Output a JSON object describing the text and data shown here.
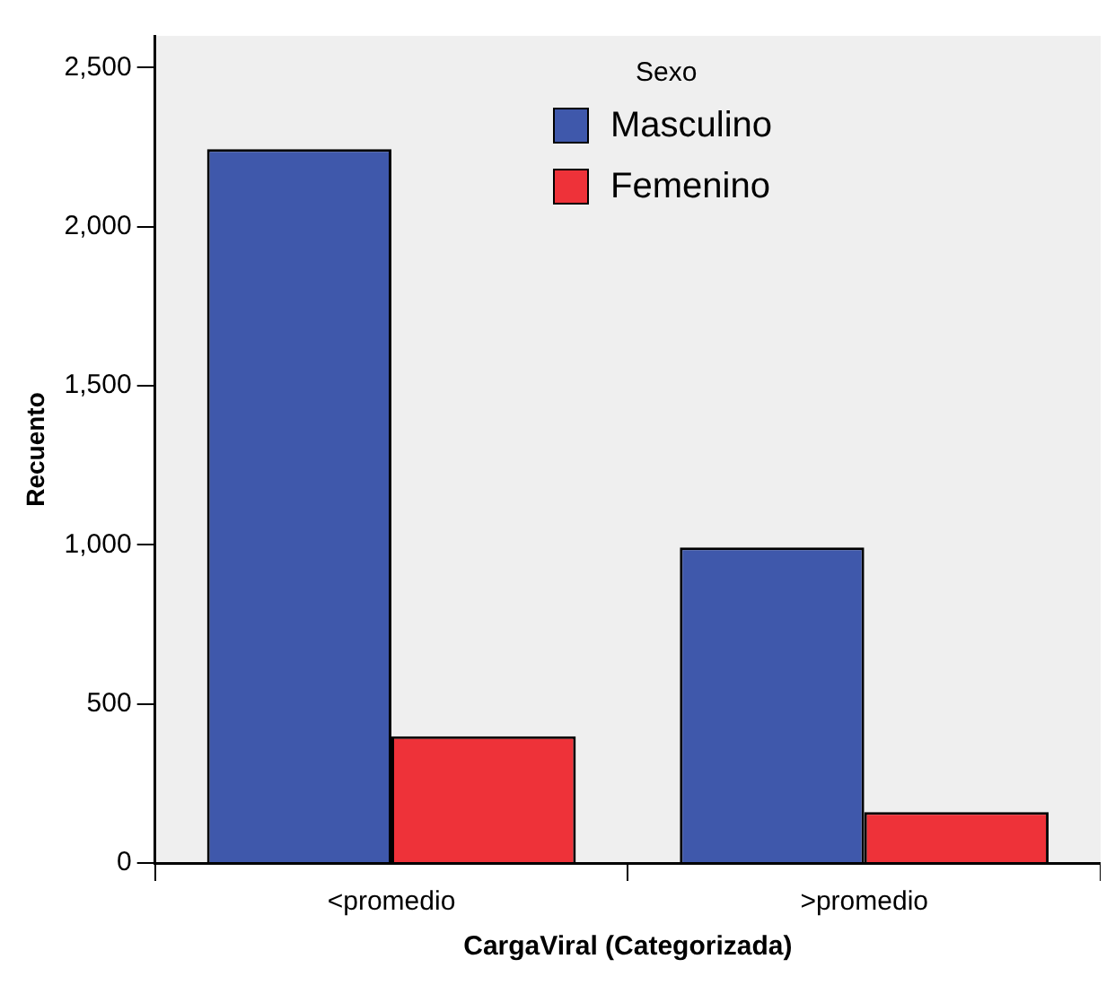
{
  "chart_data": {
    "type": "bar",
    "xlabel": "CargaViral (Categorizada)",
    "ylabel": "Recuento",
    "legend_title": "Sexo",
    "legend": "top",
    "grid": false,
    "categories": [
      "<promedio",
      ">promedio"
    ],
    "series": [
      {
        "name": "Masculino",
        "color": "#3f58ab",
        "values": [
          2244,
          992
        ]
      },
      {
        "name": "Femenino",
        "color": "#ee3239",
        "values": [
          398,
          160
        ]
      }
    ],
    "ylim": [
      0,
      2600
    ],
    "yticks": [
      0,
      500,
      {
        "value": 1000,
        "label": "1,000"
      },
      {
        "value": 1500,
        "label": "1,500"
      },
      {
        "value": 2000,
        "label": "2,000"
      },
      {
        "value": 2500,
        "label": "2,500"
      }
    ]
  }
}
